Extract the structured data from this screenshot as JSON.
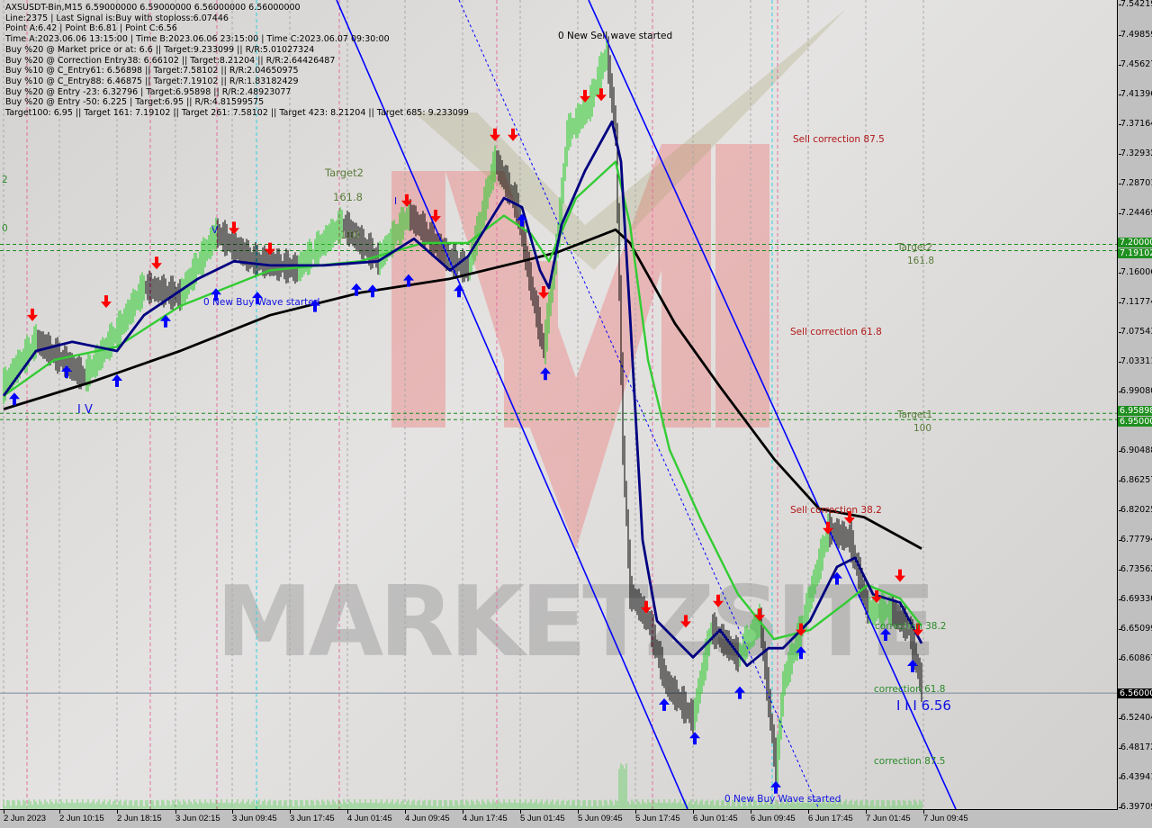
{
  "header": {
    "lines": [
      "AXSUSDT-Bin,M15  6.59000000 6.59000000 6.56000000 6.56000000",
      "Line:2375 | Last Signal is:Buy with stoploss:6.07446",
      "Point A:6.42 | Point B:6.81 | Point C:6.56",
      "Time A:2023.06.06 13:15:00 | Time B:2023.06.06 23:15:00 | Time C:2023.06.07 09:30:00",
      "Buy %20 @ Market price or at: 6.6 || Target:9.233099 || R/R:5.01027324",
      "Buy %20 @ Correction Entry38: 6.66102 || Target:8.21204 || R/R:2.64426487",
      "Buy %10 @ C_Entry61: 6.56898 || Target:7.58102 || R/R:2.04650975",
      "Buy %10 @ C_Entry88: 6.46875 || Target:7.19102 || R/R:1.83182429",
      "Buy %20 @ Entry -23: 6.32796 | Target:6.95898 || R/R:2.48923077",
      "Buy %20 @ Entry -50: 6.225 | Target:6.95 || R/R:4.81599575",
      "Target100: 6.95 || Target 161: 7.19102 || Target 261: 7.58102 || Target 423: 8.21204 || Target 685: 9.233099"
    ]
  },
  "watermark": "MARKETZSITE",
  "annotations": {
    "new_sell_wave": "0 New Sell wave started",
    "new_buy_wave_1": "0 New Buy Wave started",
    "new_buy_wave_2": "0 New Buy Wave started",
    "sell_corr_875": "Sell correction 87.5",
    "sell_corr_618": "Sell correction 61.8",
    "sell_corr_382": "Sell correction 38.2",
    "target2": "Target2",
    "target2_level": "161.8",
    "target1": "Target1",
    "target1_level": "100",
    "left_target2": "Target2",
    "left_target2_level": "161.8",
    "left_100": "100",
    "corr_382": "correction 38.2",
    "corr_618": "correction 61.8",
    "corr_875": "correction 87.5",
    "wave_label": "I I I 6.56",
    "wave_iv": "I V",
    "wave_v": "V",
    "wave_i": "I",
    "edge_2": "2",
    "edge_0": "0"
  },
  "colors": {
    "ma_fast": "#000080",
    "ma_mid": "#33cc33",
    "ma_slow": "#000000",
    "channel": "#0000ff",
    "sell_arrow": "#ff0000",
    "buy_arrow": "#0000ff",
    "target_line": "#1a8a1a",
    "price_box": "#000000",
    "target_box": "#1f8f1f"
  },
  "chart_data": {
    "type": "line",
    "symbol": "AXSUSDT-Bin",
    "timeframe": "M15",
    "ylim": [
      6.39709,
      7.54219
    ],
    "y_ticks": [
      "7.54219",
      "7.49859",
      "7.45627",
      "7.41396",
      "7.37164",
      "7.32932",
      "7.28701",
      "7.24469",
      "7.16006",
      "7.11774",
      "7.07543",
      "7.03311",
      "6.99080",
      "6.90488",
      "6.86257",
      "6.82025",
      "6.77794",
      "6.73562",
      "6.69330",
      "6.65099",
      "6.60867",
      "6.52404",
      "6.48172",
      "6.43941",
      "6.39709"
    ],
    "x_ticks": [
      "2 Jun 2023",
      "2 Jun 10:15",
      "2 Jun 18:15",
      "3 Jun 02:15",
      "3 Jun 09:45",
      "3 Jun 17:45",
      "4 Jun 01:45",
      "4 Jun 09:45",
      "4 Jun 17:45",
      "5 Jun 01:45",
      "5 Jun 09:45",
      "5 Jun 17:45",
      "6 Jun 01:45",
      "6 Jun 09:45",
      "6 Jun 17:45",
      "7 Jun 01:45",
      "7 Jun 09:45"
    ],
    "price_boxes": [
      {
        "label": "7.20000",
        "value": 7.2,
        "kind": "target"
      },
      {
        "label": "7.19102",
        "value": 7.19102,
        "kind": "target"
      },
      {
        "label": "6.95898",
        "value": 6.95898,
        "kind": "target"
      },
      {
        "label": "6.95000",
        "value": 6.95,
        "kind": "target"
      },
      {
        "label": "6.56000",
        "value": 6.56,
        "kind": "current"
      }
    ],
    "horizontal_lines": [
      7.2,
      7.19102,
      6.95898,
      6.95
    ],
    "current_price": 6.56,
    "price": [
      [
        "2023-06-02 02:30",
        6.997
      ],
      [
        "2023-06-02 07:00",
        7.061
      ],
      [
        "2023-06-02 13:45",
        7.009
      ],
      [
        "2023-06-02 18:15",
        7.074
      ],
      [
        "2023-06-02 22:00",
        7.138
      ],
      [
        "2023-06-03 03:00",
        7.125
      ],
      [
        "2023-06-03 08:00",
        7.215
      ],
      [
        "2023-06-03 13:00",
        7.176
      ],
      [
        "2023-06-03 19:15",
        7.163
      ],
      [
        "2023-06-04 01:30",
        7.228
      ],
      [
        "2023-06-04 06:30",
        7.176
      ],
      [
        "2023-06-04 10:45",
        7.241
      ],
      [
        "2023-06-04 16:30",
        7.176
      ],
      [
        "2023-06-04 19:00",
        7.163
      ],
      [
        "2023-06-04 22:45",
        7.318
      ],
      [
        "2023-06-05 01:45",
        7.253
      ],
      [
        "2023-06-05 03:45",
        7.138
      ],
      [
        "2023-06-05 05:30",
        7.048
      ],
      [
        "2023-06-05 07:30",
        7.215
      ],
      [
        "2023-06-05 08:45",
        7.356
      ],
      [
        "2023-06-05 11:45",
        7.395
      ],
      [
        "2023-06-05 14:15",
        7.472
      ],
      [
        "2023-06-05 15:30",
        7.356
      ],
      [
        "2023-06-05 16:30",
        6.907
      ],
      [
        "2023-06-05 17:30",
        6.701
      ],
      [
        "2023-06-05 20:00",
        6.663
      ],
      [
        "2023-06-05 22:30",
        6.573
      ],
      [
        "2023-06-06 02:15",
        6.522
      ],
      [
        "2023-06-06 04:45",
        6.65
      ],
      [
        "2023-06-06 08:30",
        6.611
      ],
      [
        "2023-06-06 11:30",
        6.663
      ],
      [
        "2023-06-06 12:45",
        6.547
      ],
      [
        "2023-06-06 13:45",
        6.445
      ],
      [
        "2023-06-06 14:45",
        6.573
      ],
      [
        "2023-06-06 17:15",
        6.65
      ],
      [
        "2023-06-06 21:00",
        6.791
      ],
      [
        "2023-06-07 00:00",
        6.778
      ],
      [
        "2023-06-07 02:30",
        6.676
      ],
      [
        "2023-06-07 05:45",
        6.676
      ],
      [
        "2023-06-07 08:15",
        6.65
      ],
      [
        "2023-06-07 10:00",
        6.567
      ]
    ],
    "series": [
      {
        "color": "#000000",
        "values": [
          [
            "2023-06-02 02:30",
            6.965
          ],
          [
            "2023-06-02 14:30",
            7.003
          ],
          [
            "2023-06-03 03:00",
            7.048
          ],
          [
            "2023-06-03 15:30",
            7.099
          ],
          [
            "2023-06-04 04:00",
            7.131
          ],
          [
            "2023-06-04 16:30",
            7.151
          ],
          [
            "2023-06-05 02:30",
            7.176
          ],
          [
            "2023-06-05 07:30",
            7.189
          ],
          [
            "2023-06-05 15:30",
            7.221
          ],
          [
            "2023-06-05 17:30",
            7.202
          ],
          [
            "2023-06-05 23:45",
            7.087
          ],
          [
            "2023-06-06 06:00",
            6.997
          ],
          [
            "2023-06-06 13:30",
            6.894
          ],
          [
            "2023-06-06 19:45",
            6.823
          ],
          [
            "2023-06-07 02:00",
            6.811
          ],
          [
            "2023-06-07 10:00",
            6.766
          ]
        ]
      },
      {
        "color": "#33cc33",
        "values": [
          [
            "2023-06-02 02:30",
            6.984
          ],
          [
            "2023-06-02 09:30",
            7.035
          ],
          [
            "2023-06-02 18:15",
            7.054
          ],
          [
            "2023-06-03 03:00",
            7.112
          ],
          [
            "2023-06-03 15:30",
            7.163
          ],
          [
            "2023-06-04 04:00",
            7.176
          ],
          [
            "2023-06-04 12:45",
            7.202
          ],
          [
            "2023-06-04 19:00",
            7.202
          ],
          [
            "2023-06-05 00:00",
            7.241
          ],
          [
            "2023-06-05 03:45",
            7.215
          ],
          [
            "2023-06-05 06:15",
            7.176
          ],
          [
            "2023-06-05 10:00",
            7.266
          ],
          [
            "2023-06-05 15:30",
            7.318
          ],
          [
            "2023-06-05 17:30",
            7.228
          ],
          [
            "2023-06-05 20:00",
            7.035
          ],
          [
            "2023-06-05 23:00",
            6.907
          ],
          [
            "2023-06-06 03:30",
            6.804
          ],
          [
            "2023-06-06 08:30",
            6.701
          ],
          [
            "2023-06-06 13:30",
            6.637
          ],
          [
            "2023-06-06 18:30",
            6.65
          ],
          [
            "2023-06-06 23:30",
            6.689
          ],
          [
            "2023-06-07 02:30",
            6.714
          ],
          [
            "2023-06-07 07:00",
            6.695
          ],
          [
            "2023-06-07 10:00",
            6.656
          ]
        ]
      },
      {
        "color": "#000080",
        "values": [
          [
            "2023-06-02 02:30",
            6.984
          ],
          [
            "2023-06-02 07:00",
            7.048
          ],
          [
            "2023-06-02 12:00",
            7.061
          ],
          [
            "2023-06-02 18:15",
            7.048
          ],
          [
            "2023-06-02 22:00",
            7.099
          ],
          [
            "2023-06-03 05:30",
            7.151
          ],
          [
            "2023-06-03 10:30",
            7.176
          ],
          [
            "2023-06-03 15:30",
            7.17
          ],
          [
            "2023-06-03 23:00",
            7.17
          ],
          [
            "2023-06-04 06:30",
            7.176
          ],
          [
            "2023-06-04 11:30",
            7.208
          ],
          [
            "2023-06-04 16:30",
            7.163
          ],
          [
            "2023-06-04 19:00",
            7.183
          ],
          [
            "2023-06-05 00:00",
            7.266
          ],
          [
            "2023-06-05 02:30",
            7.253
          ],
          [
            "2023-06-05 05:00",
            7.163
          ],
          [
            "2023-06-05 06:15",
            7.138
          ],
          [
            "2023-06-05 08:00",
            7.228
          ],
          [
            "2023-06-05 11:15",
            7.305
          ],
          [
            "2023-06-05 15:00",
            7.375
          ],
          [
            "2023-06-05 16:15",
            7.318
          ],
          [
            "2023-06-05 17:30",
            7.099
          ],
          [
            "2023-06-05 19:15",
            6.778
          ],
          [
            "2023-06-05 21:15",
            6.663
          ],
          [
            "2023-06-06 02:15",
            6.611
          ],
          [
            "2023-06-06 06:00",
            6.65
          ],
          [
            "2023-06-06 09:45",
            6.599
          ],
          [
            "2023-06-06 12:45",
            6.624
          ],
          [
            "2023-06-06 14:45",
            6.624
          ],
          [
            "2023-06-06 18:30",
            6.663
          ],
          [
            "2023-06-06 22:15",
            6.74
          ],
          [
            "2023-06-07 00:45",
            6.753
          ],
          [
            "2023-06-07 03:15",
            6.701
          ],
          [
            "2023-06-07 07:00",
            6.689
          ],
          [
            "2023-06-07 10:00",
            6.631
          ]
        ]
      }
    ],
    "channel_lines": [
      {
        "from": [
          "2023-06-04 00:45",
          7.5486
        ],
        "to": [
          "2023-06-06 01:30",
          6.3946
        ],
        "style": "solid"
      },
      {
        "from": [
          "2023-06-05 11:45",
          7.5486
        ],
        "to": [
          "2023-06-07 14:45",
          6.3946
        ],
        "style": "solid"
      },
      {
        "from": [
          "2023-06-04 17:45",
          7.5486
        ],
        "to": [
          "2023-06-06 19:45",
          6.3946
        ],
        "style": "dashed"
      }
    ],
    "sell_signals": [
      [
        "2023-06-02 06:30",
        7.093
      ],
      [
        "2023-06-02 16:45",
        7.112
      ],
      [
        "2023-06-02 23:45",
        7.167
      ],
      [
        "2023-06-03 10:30",
        7.217
      ],
      [
        "2023-06-03 15:30",
        7.187
      ],
      [
        "2023-06-04 10:30",
        7.256
      ],
      [
        "2023-06-04 14:30",
        7.234
      ],
      [
        "2023-06-04 22:45",
        7.35
      ],
      [
        "2023-06-05 01:15",
        7.35
      ],
      [
        "2023-06-05 05:30",
        7.125
      ],
      [
        "2023-06-05 11:15",
        7.405
      ],
      [
        "2023-06-05 13:30",
        7.407
      ],
      [
        "2023-06-05 19:45",
        6.676
      ],
      [
        "2023-06-06 01:15",
        6.656
      ],
      [
        "2023-06-06 05:45",
        6.685
      ],
      [
        "2023-06-06 11:30",
        6.665
      ],
      [
        "2023-06-06 17:15",
        6.644
      ],
      [
        "2023-06-06 21:00",
        6.789
      ],
      [
        "2023-06-07 00:00",
        6.804
      ],
      [
        "2023-06-07 03:45",
        6.691
      ],
      [
        "2023-06-07 07:00",
        6.721
      ],
      [
        "2023-06-07 09:30",
        6.644
      ]
    ],
    "buy_signals": [
      [
        "2023-06-02 04:00",
        6.986
      ],
      [
        "2023-06-02 11:15",
        7.025
      ],
      [
        "2023-06-02 18:15",
        7.012
      ],
      [
        "2023-06-03 01:00",
        7.097
      ],
      [
        "2023-06-03 08:00",
        7.135
      ],
      [
        "2023-06-03 13:45",
        7.13
      ],
      [
        "2023-06-03 21:45",
        7.119
      ],
      [
        "2023-06-04 03:30",
        7.142
      ],
      [
        "2023-06-04 05:45",
        7.14
      ],
      [
        "2023-06-04 10:45",
        7.155
      ],
      [
        "2023-06-04 17:45",
        7.14
      ],
      [
        "2023-06-05 02:30",
        7.241
      ],
      [
        "2023-06-05 05:45",
        7.022
      ],
      [
        "2023-06-05 22:15",
        6.55
      ],
      [
        "2023-06-06 02:30",
        6.502
      ],
      [
        "2023-06-06 08:45",
        6.567
      ],
      [
        "2023-06-06 13:45",
        6.432
      ],
      [
        "2023-06-06 17:15",
        6.624
      ],
      [
        "2023-06-06 22:15",
        6.73
      ],
      [
        "2023-06-07 05:00",
        6.65
      ],
      [
        "2023-06-07 08:45",
        6.605
      ]
    ]
  }
}
